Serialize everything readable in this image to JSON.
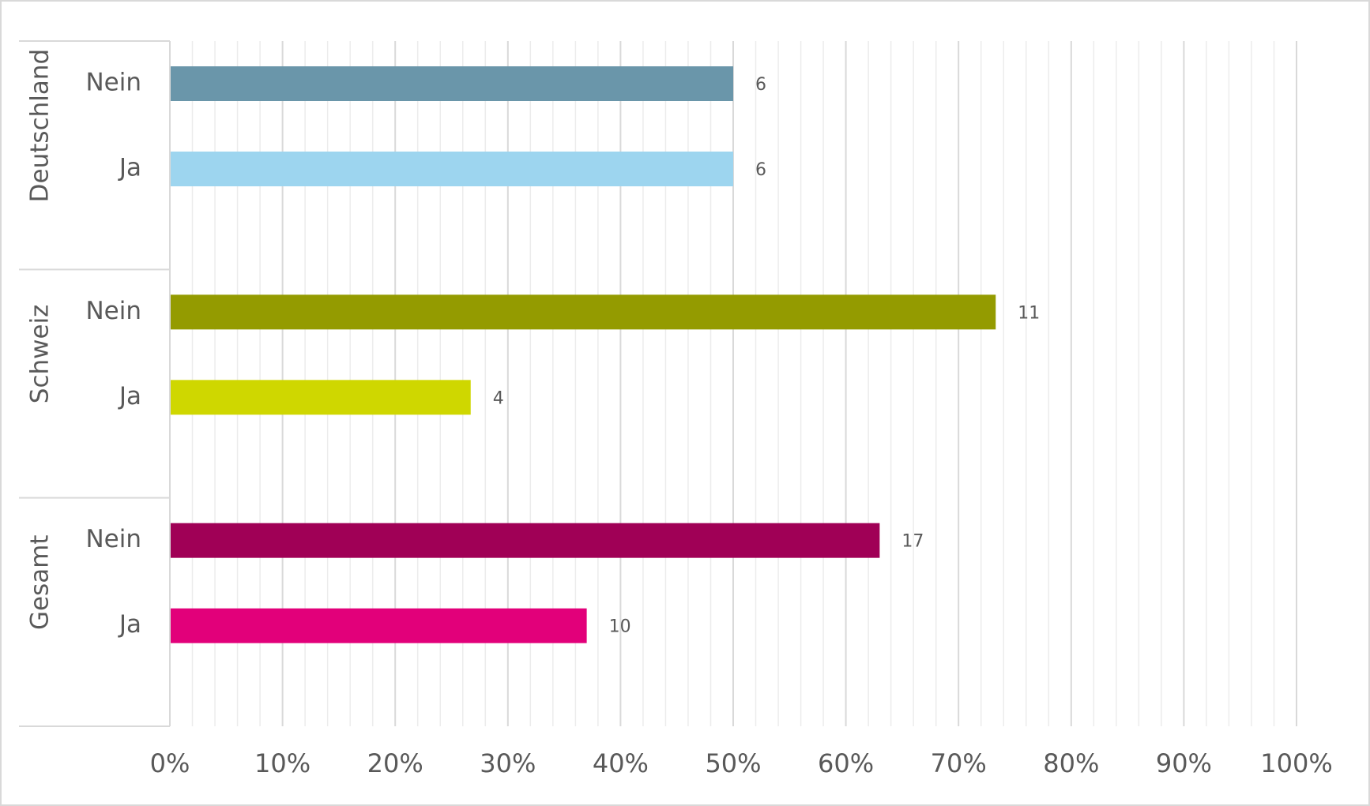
{
  "chart_data": {
    "type": "grouped-bar",
    "groups": [
      {
        "name": "Deutschland",
        "categories": [
          "Nein",
          "Ja"
        ],
        "values": [
          50,
          50
        ],
        "counts": [
          6,
          6
        ],
        "colors": [
          "#6a96aa",
          "#9dd5ef"
        ]
      },
      {
        "name": "Schweiz",
        "categories": [
          "Nein",
          "Ja"
        ],
        "values": [
          73.3,
          26.7
        ],
        "counts": [
          11,
          4
        ],
        "colors": [
          "#949b00",
          "#cfd700"
        ]
      },
      {
        "name": "Gesamt",
        "categories": [
          "Nein",
          "Ja"
        ],
        "values": [
          63,
          37
        ],
        "counts": [
          17,
          10
        ],
        "colors": [
          "#a00056",
          "#e2007a"
        ]
      }
    ],
    "xlim": [
      0,
      100
    ],
    "xticks": [
      {
        "value": 0,
        "label": "0%"
      },
      {
        "value": 10,
        "label": "10%"
      },
      {
        "value": 20,
        "label": "20%"
      },
      {
        "value": 30,
        "label": "30%"
      },
      {
        "value": 40,
        "label": "40%"
      },
      {
        "value": 50,
        "label": "50%"
      },
      {
        "value": 60,
        "label": "60%"
      },
      {
        "value": 70,
        "label": "70%"
      },
      {
        "value": 80,
        "label": "80%"
      },
      {
        "value": 90,
        "label": "90%"
      },
      {
        "value": 100,
        "label": "100%"
      }
    ],
    "minor_xticks": [
      2,
      4,
      6,
      8,
      12,
      14,
      16,
      18,
      22,
      24,
      26,
      28,
      32,
      34,
      36,
      38,
      42,
      44,
      46,
      48,
      52,
      54,
      56,
      58,
      62,
      64,
      66,
      68,
      72,
      74,
      76,
      78,
      82,
      84,
      86,
      88,
      92,
      94,
      96,
      98
    ],
    "grid": true
  }
}
